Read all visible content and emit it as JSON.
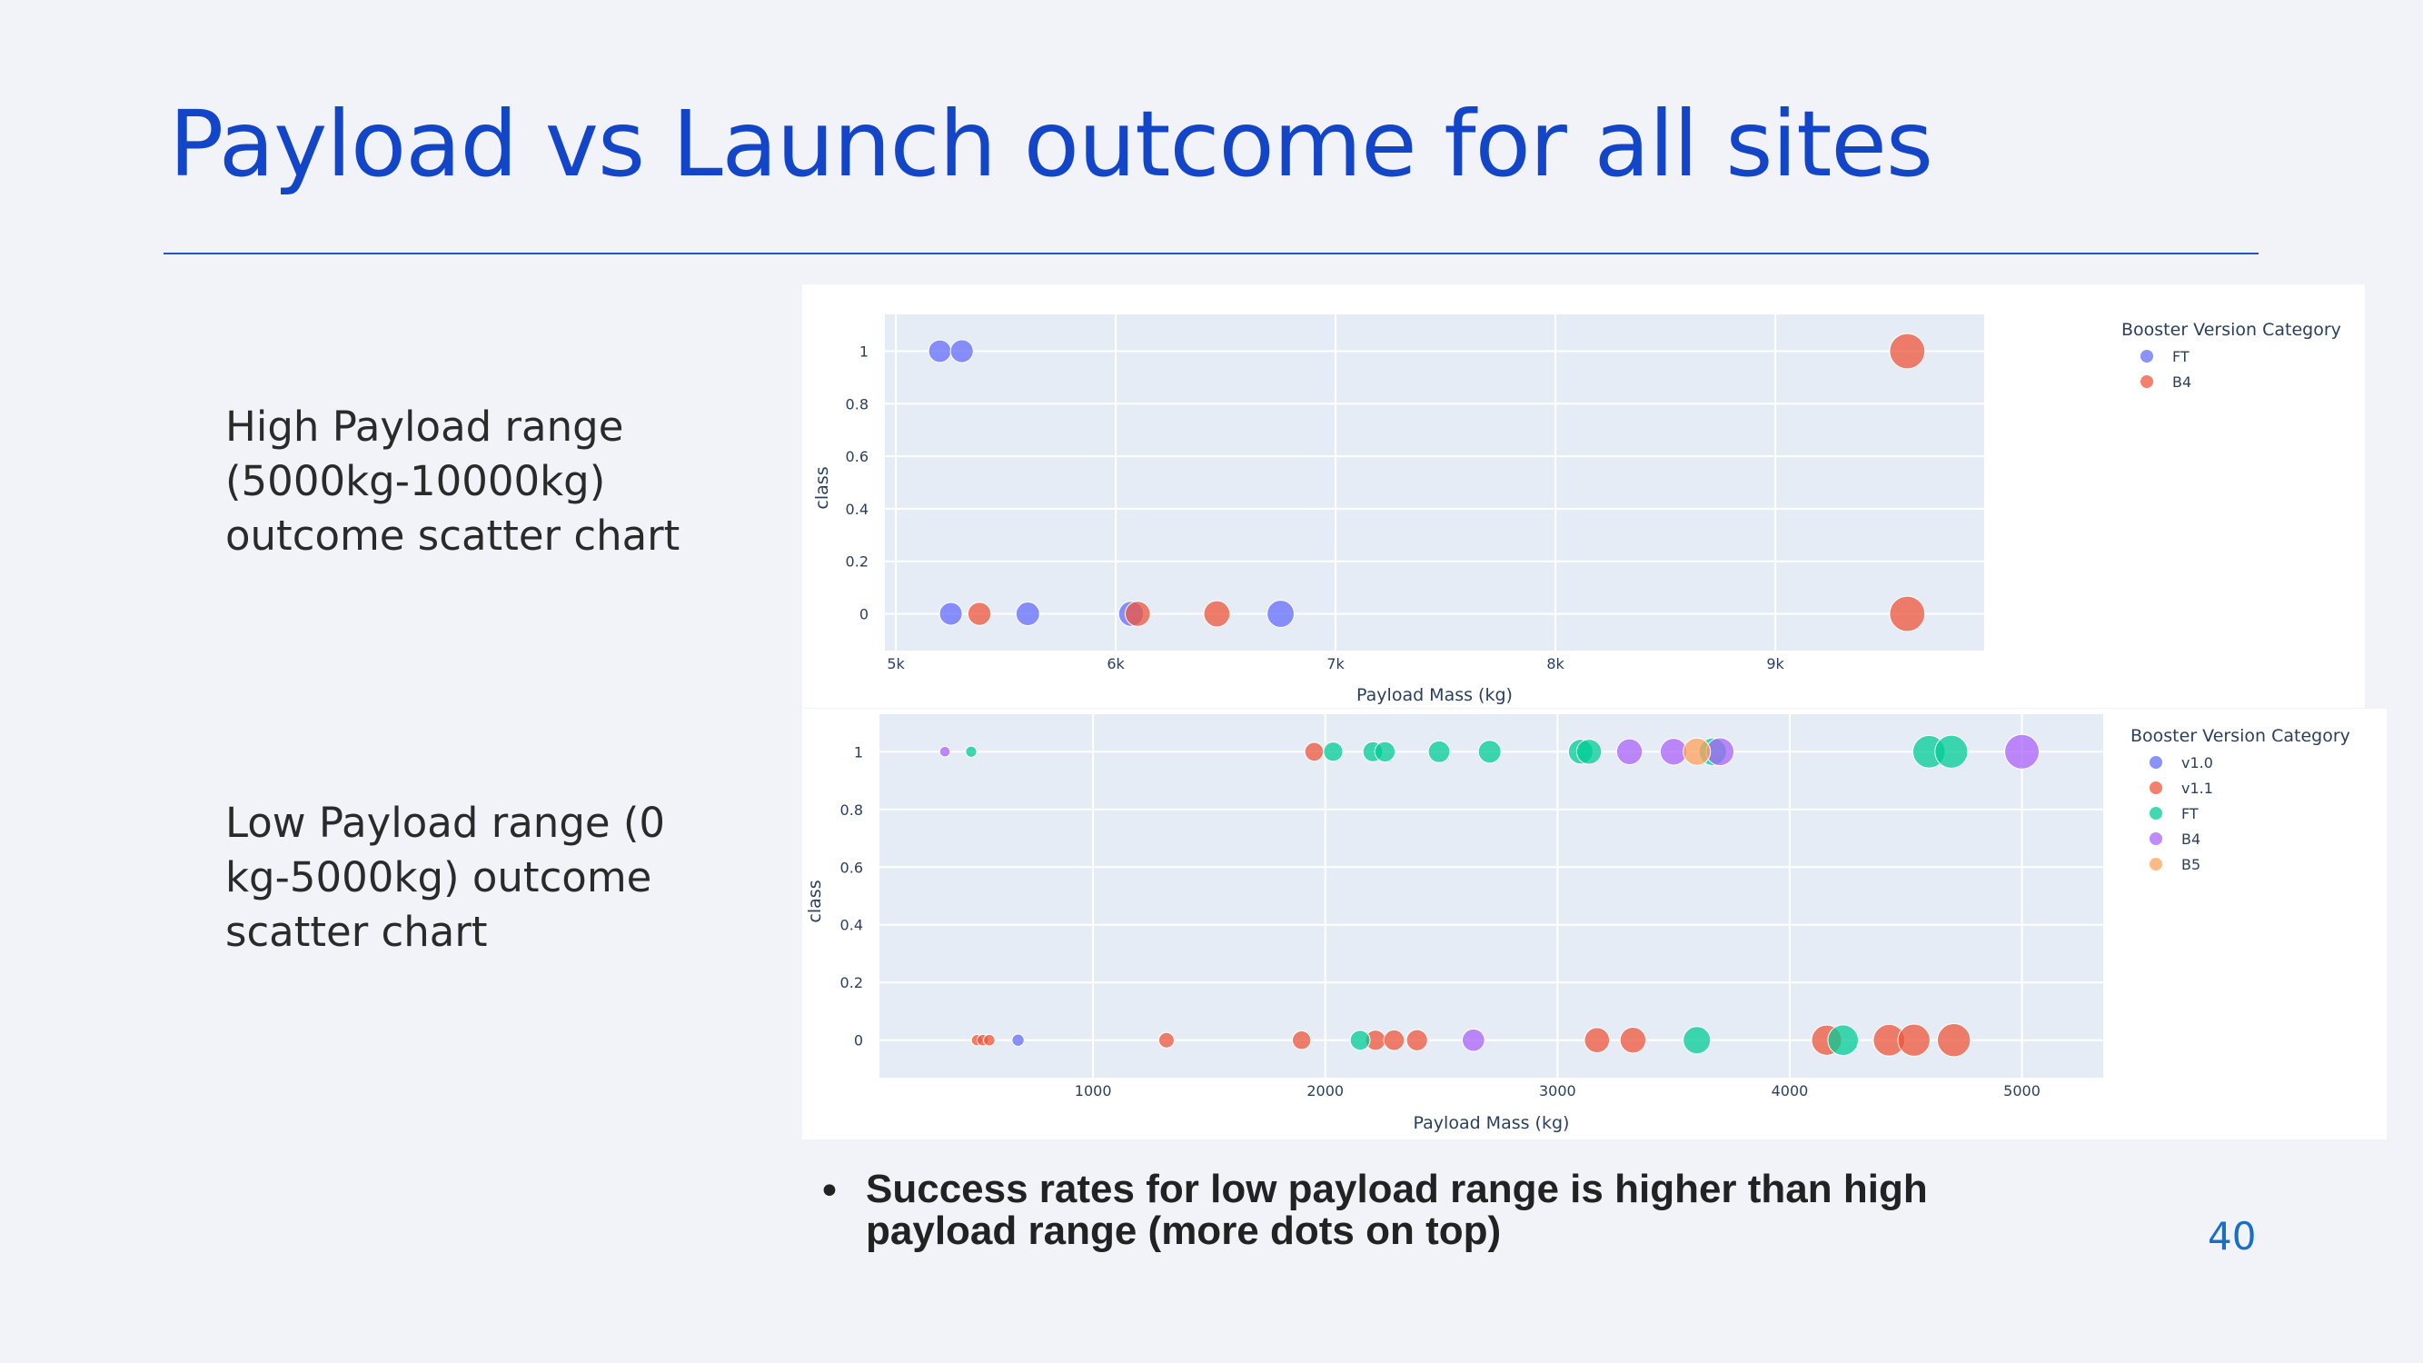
{
  "slide": {
    "title": "Payload vs Launch outcome for all sites",
    "high_label": "High Payload range (5000kg-10000kg) outcome scatter chart",
    "low_label": "Low Payload range (0 kg-5000kg) outcome scatter chart",
    "bullet": "Success rates for low payload range is higher than high payload range (more dots on top)",
    "page_number": "40"
  },
  "chart_data": [
    {
      "type": "scatter",
      "xlabel": "Payload Mass (kg)",
      "ylabel": "class",
      "xlim": [
        4950,
        9950
      ],
      "ylim": [
        -0.14,
        1.14
      ],
      "xticks": [
        5000,
        6000,
        7000,
        8000,
        9000
      ],
      "xtick_labels": [
        "5k",
        "6k",
        "7k",
        "8k",
        "9k"
      ],
      "yticks": [
        0,
        0.2,
        0.4,
        0.6,
        0.8,
        1
      ],
      "ytick_labels": [
        "0",
        "0.2",
        "0.4",
        "0.6",
        "0.8",
        "1"
      ],
      "legend_title": "Booster Version Category",
      "legend_position": "right",
      "grid": true,
      "series": [
        {
          "name": "FT",
          "color": "#636efa",
          "points": [
            {
              "x": 5200,
              "y": 1
            },
            {
              "x": 5300,
              "y": 1
            },
            {
              "x": 5250,
              "y": 0
            },
            {
              "x": 5600,
              "y": 0
            },
            {
              "x": 6070,
              "y": 0
            },
            {
              "x": 6750,
              "y": 0
            }
          ]
        },
        {
          "name": "B4",
          "color": "#ef553b",
          "points": [
            {
              "x": 9600,
              "y": 1
            },
            {
              "x": 5380,
              "y": 0
            },
            {
              "x": 6100,
              "y": 0
            },
            {
              "x": 6460,
              "y": 0
            },
            {
              "x": 9600,
              "y": 0
            }
          ]
        }
      ]
    },
    {
      "type": "scatter",
      "xlabel": "Payload Mass (kg)",
      "ylabel": "class",
      "xlim": [
        80,
        5350
      ],
      "ylim": [
        -0.13,
        1.13
      ],
      "xticks": [
        1000,
        2000,
        3000,
        4000,
        5000
      ],
      "xtick_labels": [
        "1000",
        "2000",
        "3000",
        "4000",
        "5000"
      ],
      "yticks": [
        0,
        0.2,
        0.4,
        0.6,
        0.8,
        1
      ],
      "ytick_labels": [
        "0",
        "0.2",
        "0.4",
        "0.6",
        "0.8",
        "1"
      ],
      "legend_title": "Booster Version Category",
      "legend_position": "right",
      "grid": true,
      "series": [
        {
          "name": "v1.0",
          "color": "#636efa",
          "points": [
            {
              "x": 677,
              "y": 0
            }
          ]
        },
        {
          "name": "v1.1",
          "color": "#ef553b",
          "points": [
            {
              "x": 1952,
              "y": 1
            },
            {
              "x": 500,
              "y": 0
            },
            {
              "x": 525,
              "y": 0
            },
            {
              "x": 553,
              "y": 0
            },
            {
              "x": 1316,
              "y": 0
            },
            {
              "x": 1898,
              "y": 0
            },
            {
              "x": 2216,
              "y": 0
            },
            {
              "x": 2296,
              "y": 0
            },
            {
              "x": 2395,
              "y": 0
            },
            {
              "x": 3170,
              "y": 0
            },
            {
              "x": 3325,
              "y": 0
            },
            {
              "x": 4159,
              "y": 0
            },
            {
              "x": 4428,
              "y": 0
            },
            {
              "x": 4535,
              "y": 0
            },
            {
              "x": 4707,
              "y": 0
            }
          ]
        },
        {
          "name": "FT",
          "color": "#00cc96",
          "points": [
            {
              "x": 475,
              "y": 1
            },
            {
              "x": 2034,
              "y": 1
            },
            {
              "x": 2205,
              "y": 1
            },
            {
              "x": 2257,
              "y": 1
            },
            {
              "x": 2490,
              "y": 1
            },
            {
              "x": 2708,
              "y": 1
            },
            {
              "x": 3100,
              "y": 1
            },
            {
              "x": 3136,
              "y": 1
            },
            {
              "x": 3669,
              "y": 1
            },
            {
              "x": 4600,
              "y": 1
            },
            {
              "x": 4696,
              "y": 1
            },
            {
              "x": 2150,
              "y": 0
            },
            {
              "x": 3600,
              "y": 0
            },
            {
              "x": 4230,
              "y": 0
            }
          ]
        },
        {
          "name": "B4",
          "color": "#ab63fa",
          "points": [
            {
              "x": 362,
              "y": 1
            },
            {
              "x": 3310,
              "y": 1
            },
            {
              "x": 3500,
              "y": 1
            },
            {
              "x": 3700,
              "y": 1
            },
            {
              "x": 5000,
              "y": 1
            },
            {
              "x": 2638,
              "y": 0
            }
          ]
        },
        {
          "name": "B5",
          "color": "#ffa15a",
          "points": [
            {
              "x": 3600,
              "y": 1
            }
          ]
        }
      ]
    }
  ]
}
